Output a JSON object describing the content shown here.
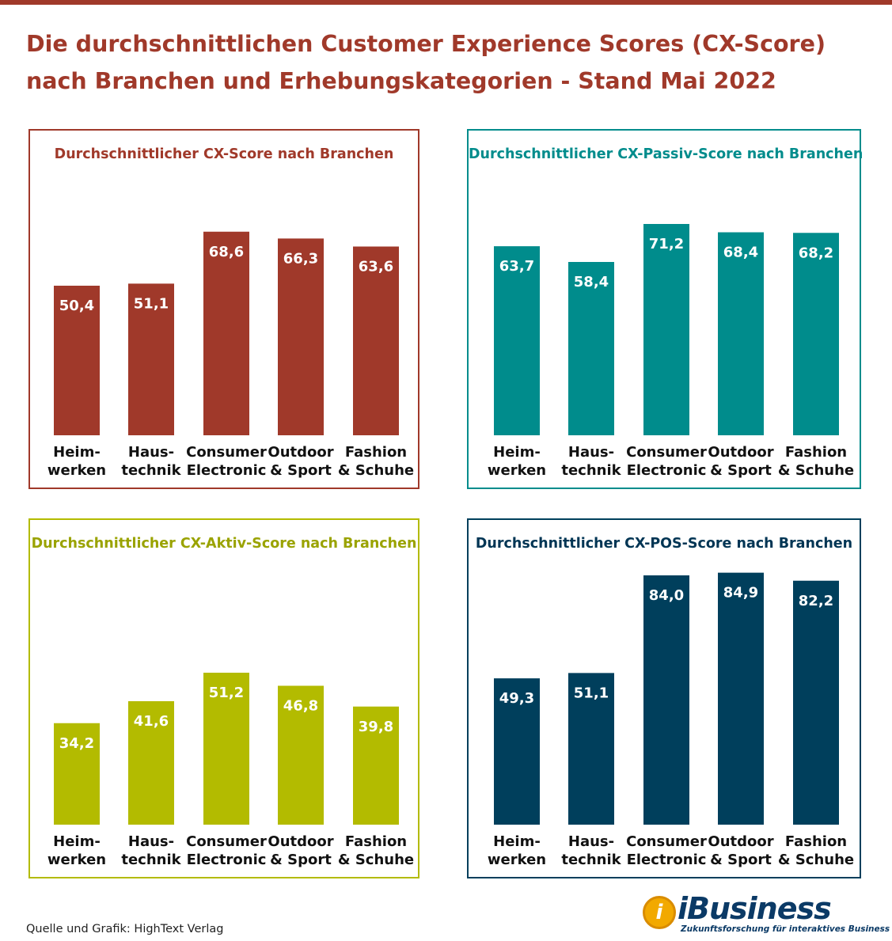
{
  "title_lines": [
    "Die durchschnittlichen Customer Experience Scores (CX-Score)",
    "nach Branchen und Erhebungskategorien - Stand Mai 2022"
  ],
  "source": "Quelle und Grafik: HighText Verlag",
  "logo": {
    "letter": "i",
    "word": "iBusiness",
    "tagline": "Zukunftsforschung für interaktives Business"
  },
  "colors": {
    "red": "#a0392a",
    "teal": "#008c8c",
    "olive": "#b3bb00",
    "navy": "#003f5c",
    "title_olive": "#9aa300",
    "title_navy": "#003554"
  },
  "chart_data": [
    {
      "type": "bar",
      "title": "Durchschnittlicher CX-Score nach Branchen",
      "categories": [
        [
          "Heim-",
          "werken"
        ],
        [
          "Haus-",
          "technik"
        ],
        [
          "Consumer",
          "Electronic"
        ],
        [
          "Outdoor",
          "& Sport"
        ],
        [
          "Fashion",
          "& Schuhe"
        ]
      ],
      "values": [
        50.4,
        51.1,
        68.6,
        66.3,
        63.6
      ],
      "labels": [
        "50,4",
        "51,1",
        "68,6",
        "66,3",
        "63,6"
      ],
      "color": "#a0392a",
      "title_color": "#a0392a"
    },
    {
      "type": "bar",
      "title": "Durchschnittlicher CX-Passiv-Score nach Branchen",
      "categories": [
        [
          "Heim-",
          "werken"
        ],
        [
          "Haus-",
          "technik"
        ],
        [
          "Consumer",
          "Electronic"
        ],
        [
          "Outdoor",
          "& Sport"
        ],
        [
          "Fashion",
          "& Schuhe"
        ]
      ],
      "values": [
        63.7,
        58.4,
        71.2,
        68.4,
        68.2
      ],
      "labels": [
        "63,7",
        "58,4",
        "71,2",
        "68,4",
        "68,2"
      ],
      "color": "#008c8c",
      "title_color": "#008c8c"
    },
    {
      "type": "bar",
      "title": "Durchschnittlicher CX-Aktiv-Score nach Branchen",
      "categories": [
        [
          "Heim-",
          "werken"
        ],
        [
          "Haus-",
          "technik"
        ],
        [
          "Consumer",
          "Electronic"
        ],
        [
          "Outdoor",
          "& Sport"
        ],
        [
          "Fashion",
          "& Schuhe"
        ]
      ],
      "values": [
        34.2,
        41.6,
        51.2,
        46.8,
        39.8
      ],
      "labels": [
        "34,2",
        "41,6",
        "51,2",
        "46,8",
        "39,8"
      ],
      "color": "#b3bb00",
      "title_color": "#9aa300"
    },
    {
      "type": "bar",
      "title": "Durchschnittlicher CX-POS-Score nach Branchen",
      "categories": [
        [
          "Heim-",
          "werken"
        ],
        [
          "Haus-",
          "technik"
        ],
        [
          "Consumer",
          "Electronic"
        ],
        [
          "Outdoor",
          "& Sport"
        ],
        [
          "Fashion",
          "& Schuhe"
        ]
      ],
      "values": [
        49.3,
        51.1,
        84.0,
        84.9,
        82.2
      ],
      "labels": [
        "49,3",
        "51,1",
        "84,0",
        "84,9",
        "82,2"
      ],
      "color": "#003f5c",
      "title_color": "#003554"
    }
  ]
}
